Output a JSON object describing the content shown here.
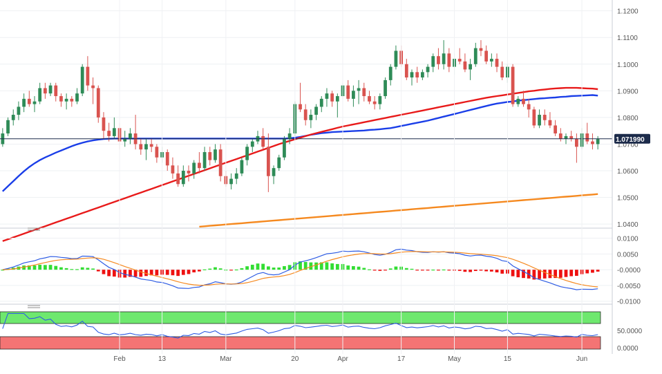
{
  "chart_data": [
    {
      "type": "candlestick",
      "panel": "price",
      "x": [
        "Jan 02",
        "Jan 03",
        "Jan 04",
        "Jan 05",
        "Jan 06",
        "Jan 09",
        "Jan 10",
        "Jan 11",
        "Jan 12",
        "Jan 13",
        "Jan 16",
        "Jan 17",
        "Jan 18",
        "Jan 19",
        "Jan 20",
        "Jan 23",
        "Jan 24",
        "Jan 25",
        "Jan 26",
        "Jan 27",
        "Jan 30",
        "Jan 31",
        "Feb 01",
        "Feb 02",
        "Feb 03",
        "Feb 06",
        "Feb 07",
        "Feb 08",
        "Feb 09",
        "Feb 10",
        "Feb 13",
        "Feb 14",
        "Feb 15",
        "Feb 16",
        "Feb 17",
        "Feb 20",
        "Feb 21",
        "Feb 22",
        "Feb 23",
        "Feb 24",
        "Feb 27",
        "Feb 28",
        "Mar 01",
        "Mar 02",
        "Mar 03",
        "Mar 06",
        "Mar 07",
        "Mar 08",
        "Mar 09",
        "Mar 10",
        "Mar 13",
        "Mar 14",
        "Mar 15",
        "Mar 16",
        "Mar 17",
        "Mar 20",
        "Mar 21",
        "Mar 22",
        "Mar 23",
        "Mar 24",
        "Mar 27",
        "Mar 28",
        "Mar 29",
        "Mar 30",
        "Mar 31",
        "Apr 03",
        "Apr 04",
        "Apr 05",
        "Apr 06",
        "Apr 07",
        "Apr 10",
        "Apr 11",
        "Apr 12",
        "Apr 13",
        "Apr 14",
        "Apr 17",
        "Apr 18",
        "Apr 19",
        "Apr 20",
        "Apr 21",
        "Apr 24",
        "Apr 25",
        "Apr 26",
        "Apr 27",
        "Apr 28",
        "May 01",
        "May 02",
        "May 03",
        "May 04",
        "May 05",
        "May 08",
        "May 09",
        "May 10",
        "May 11",
        "May 12",
        "May 15",
        "May 16",
        "May 17",
        "May 18",
        "May 19",
        "May 22",
        "May 23",
        "May 24",
        "May 25",
        "May 26",
        "May 29",
        "May 30",
        "May 31",
        "Jun 01",
        "Jun 02",
        "Jun 05",
        "Jun 06",
        "Jun 07"
      ],
      "ohlc": [
        [
          1.07,
          1.076,
          1.069,
          1.074
        ],
        [
          1.074,
          1.08,
          1.073,
          1.079
        ],
        [
          1.079,
          1.083,
          1.077,
          1.081
        ],
        [
          1.081,
          1.086,
          1.079,
          1.084
        ],
        [
          1.084,
          1.089,
          1.082,
          1.087
        ],
        [
          1.087,
          1.09,
          1.084,
          1.085
        ],
        [
          1.085,
          1.088,
          1.082,
          1.086
        ],
        [
          1.086,
          1.093,
          1.085,
          1.091
        ],
        [
          1.091,
          1.093,
          1.087,
          1.089
        ],
        [
          1.089,
          1.093,
          1.088,
          1.092
        ],
        [
          1.092,
          1.093,
          1.086,
          1.088
        ],
        [
          1.088,
          1.089,
          1.084,
          1.086
        ],
        [
          1.086,
          1.089,
          1.083,
          1.087
        ],
        [
          1.087,
          1.088,
          1.084,
          1.086
        ],
        [
          1.086,
          1.091,
          1.085,
          1.089
        ],
        [
          1.089,
          1.1,
          1.088,
          1.099
        ],
        [
          1.099,
          1.103,
          1.09,
          1.092
        ],
        [
          1.092,
          1.095,
          1.085,
          1.091
        ],
        [
          1.091,
          1.092,
          1.078,
          1.08
        ],
        [
          1.08,
          1.082,
          1.072,
          1.075
        ],
        [
          1.075,
          1.078,
          1.071,
          1.073
        ],
        [
          1.073,
          1.08,
          1.072,
          1.076
        ],
        [
          1.076,
          1.078,
          1.068,
          1.071
        ],
        [
          1.071,
          1.075,
          1.069,
          1.072
        ],
        [
          1.072,
          1.076,
          1.07,
          1.074
        ],
        [
          1.074,
          1.081,
          1.068,
          1.07
        ],
        [
          1.07,
          1.072,
          1.066,
          1.068
        ],
        [
          1.068,
          1.072,
          1.064,
          1.07
        ],
        [
          1.07,
          1.072,
          1.067,
          1.069
        ],
        [
          1.069,
          1.07,
          1.063,
          1.065
        ],
        [
          1.065,
          1.069,
          1.063,
          1.067
        ],
        [
          1.067,
          1.068,
          1.06,
          1.062
        ],
        [
          1.062,
          1.065,
          1.057,
          1.059
        ],
        [
          1.059,
          1.062,
          1.054,
          1.055
        ],
        [
          1.055,
          1.062,
          1.054,
          1.06
        ],
        [
          1.06,
          1.062,
          1.056,
          1.059
        ],
        [
          1.059,
          1.064,
          1.057,
          1.063
        ],
        [
          1.063,
          1.067,
          1.059,
          1.061
        ],
        [
          1.061,
          1.069,
          1.06,
          1.067
        ],
        [
          1.067,
          1.069,
          1.062,
          1.064
        ],
        [
          1.064,
          1.07,
          1.063,
          1.068
        ],
        [
          1.068,
          1.07,
          1.056,
          1.058
        ],
        [
          1.058,
          1.06,
          1.054,
          1.055
        ],
        [
          1.055,
          1.059,
          1.053,
          1.057
        ],
        [
          1.057,
          1.061,
          1.055,
          1.059
        ],
        [
          1.059,
          1.065,
          1.058,
          1.064
        ],
        [
          1.064,
          1.07,
          1.062,
          1.069
        ],
        [
          1.069,
          1.072,
          1.067,
          1.071
        ],
        [
          1.071,
          1.075,
          1.07,
          1.073
        ],
        [
          1.073,
          1.076,
          1.068,
          1.069
        ],
        [
          1.069,
          1.074,
          1.052,
          1.058
        ],
        [
          1.058,
          1.062,
          1.055,
          1.061
        ],
        [
          1.061,
          1.066,
          1.06,
          1.065
        ],
        [
          1.065,
          1.073,
          1.064,
          1.072
        ],
        [
          1.072,
          1.076,
          1.07,
          1.074
        ],
        [
          1.074,
          1.086,
          1.073,
          1.085
        ],
        [
          1.085,
          1.093,
          1.082,
          1.083
        ],
        [
          1.083,
          1.085,
          1.077,
          1.079
        ],
        [
          1.079,
          1.083,
          1.076,
          1.081
        ],
        [
          1.081,
          1.085,
          1.079,
          1.084
        ],
        [
          1.084,
          1.088,
          1.082,
          1.087
        ],
        [
          1.087,
          1.091,
          1.084,
          1.089
        ],
        [
          1.089,
          1.09,
          1.084,
          1.086
        ],
        [
          1.086,
          1.089,
          1.08,
          1.088
        ],
        [
          1.088,
          1.093,
          1.087,
          1.092
        ],
        [
          1.092,
          1.094,
          1.086,
          1.087
        ],
        [
          1.087,
          1.092,
          1.084,
          1.09
        ],
        [
          1.09,
          1.094,
          1.085,
          1.091
        ],
        [
          1.091,
          1.093,
          1.086,
          1.088
        ],
        [
          1.088,
          1.09,
          1.085,
          1.086
        ],
        [
          1.086,
          1.088,
          1.083,
          1.085
        ],
        [
          1.085,
          1.089,
          1.083,
          1.088
        ],
        [
          1.088,
          1.095,
          1.087,
          1.094
        ],
        [
          1.094,
          1.1,
          1.092,
          1.099
        ],
        [
          1.099,
          1.107,
          1.098,
          1.105
        ],
        [
          1.105,
          1.107,
          1.099,
          1.1
        ],
        [
          1.1,
          1.102,
          1.094,
          1.095
        ],
        [
          1.095,
          1.098,
          1.092,
          1.097
        ],
        [
          1.097,
          1.099,
          1.093,
          1.095
        ],
        [
          1.095,
          1.098,
          1.094,
          1.097
        ],
        [
          1.097,
          1.1,
          1.095,
          1.099
        ],
        [
          1.099,
          1.104,
          1.097,
          1.103
        ],
        [
          1.103,
          1.106,
          1.098,
          1.1
        ],
        [
          1.1,
          1.109,
          1.098,
          1.104
        ],
        [
          1.104,
          1.106,
          1.097,
          1.099
        ],
        [
          1.099,
          1.104,
          1.096,
          1.102
        ],
        [
          1.102,
          1.106,
          1.1,
          1.101
        ],
        [
          1.101,
          1.104,
          1.097,
          1.098
        ],
        [
          1.098,
          1.102,
          1.094,
          1.1
        ],
        [
          1.1,
          1.108,
          1.099,
          1.106
        ],
        [
          1.106,
          1.109,
          1.103,
          1.105
        ],
        [
          1.105,
          1.107,
          1.1,
          1.101
        ],
        [
          1.101,
          1.104,
          1.099,
          1.102
        ],
        [
          1.102,
          1.104,
          1.097,
          1.099
        ],
        [
          1.099,
          1.101,
          1.094,
          1.095
        ],
        [
          1.095,
          1.1,
          1.093,
          1.099
        ],
        [
          1.099,
          1.1,
          1.084,
          1.085
        ],
        [
          1.085,
          1.088,
          1.084,
          1.087
        ],
        [
          1.087,
          1.09,
          1.084,
          1.085
        ],
        [
          1.085,
          1.087,
          1.08,
          1.083
        ],
        [
          1.083,
          1.084,
          1.076,
          1.077
        ],
        [
          1.077,
          1.083,
          1.076,
          1.081
        ],
        [
          1.081,
          1.083,
          1.077,
          1.079
        ],
        [
          1.079,
          1.082,
          1.076,
          1.077
        ],
        [
          1.077,
          1.079,
          1.073,
          1.074
        ],
        [
          1.074,
          1.076,
          1.071,
          1.072
        ],
        [
          1.072,
          1.074,
          1.07,
          1.073
        ],
        [
          1.073,
          1.075,
          1.071,
          1.072
        ],
        [
          1.072,
          1.074,
          1.063,
          1.069
        ],
        [
          1.069,
          1.076,
          1.068,
          1.074
        ],
        [
          1.074,
          1.078,
          1.07,
          1.071
        ],
        [
          1.071,
          1.074,
          1.068,
          1.07
        ],
        [
          1.07,
          1.073,
          1.068,
          1.0719
        ]
      ],
      "moving_averages": [
        {
          "color": "#1a3ee8",
          "values": [
            1.0523,
            1.0542,
            1.0561,
            1.058,
            1.0598,
            1.0614,
            1.0628,
            1.064,
            1.065,
            1.0659,
            1.0668,
            1.0676,
            1.0684,
            1.0692,
            1.0699,
            1.0705,
            1.071,
            1.0714,
            1.0717,
            1.0719,
            1.072,
            1.0721,
            1.0721,
            1.0721,
            1.0721,
            1.0721,
            1.0721,
            1.0721,
            1.0721,
            1.0721,
            1.0721,
            1.0721,
            1.0721,
            1.0721,
            1.0721,
            1.0721,
            1.0721,
            1.0721,
            1.0721,
            1.0721,
            1.0721,
            1.0721,
            1.0721,
            1.0721,
            1.0721,
            1.0721,
            1.0721,
            1.0721,
            1.0721,
            1.0721,
            1.0721,
            1.0721,
            1.0721,
            1.0721,
            1.0722,
            1.0724,
            1.0727,
            1.0731,
            1.0735,
            1.0738,
            1.0741,
            1.0743,
            1.0745,
            1.0746,
            1.0747,
            1.0748,
            1.0749,
            1.075,
            1.0751,
            1.0753,
            1.0754,
            1.0756,
            1.0758,
            1.076,
            1.0764,
            1.0768,
            1.0772,
            1.0776,
            1.078,
            1.0784,
            1.0788,
            1.0793,
            1.0798,
            1.0803,
            1.0808,
            1.0813,
            1.0818,
            1.0823,
            1.0828,
            1.0833,
            1.0838,
            1.0843,
            1.0848,
            1.0852,
            1.0855,
            1.0858,
            1.086,
            1.0863,
            1.0865,
            1.0867,
            1.0869,
            1.0871,
            1.0872,
            1.0874,
            1.0875,
            1.0877,
            1.0878,
            1.088,
            1.0881,
            1.0882,
            1.0883,
            1.0884,
            1.0882
          ]
        },
        {
          "color": "#e81a1a",
          "values": [
            1.0336,
            1.0343,
            1.035,
            1.0357,
            1.0364,
            1.0371,
            1.0378,
            1.0385,
            1.0392,
            1.0399,
            1.0406,
            1.0413,
            1.042,
            1.0427,
            1.0434,
            1.0441,
            1.0448,
            1.0455,
            1.0462,
            1.0469,
            1.0476,
            1.0483,
            1.049,
            1.0497,
            1.0504,
            1.0511,
            1.0518,
            1.0525,
            1.0532,
            1.0539,
            1.0546,
            1.0553,
            1.056,
            1.0567,
            1.0574,
            1.0581,
            1.0588,
            1.0595,
            1.0602,
            1.0609,
            1.0616,
            1.0623,
            1.063,
            1.0637,
            1.0644,
            1.0651,
            1.0658,
            1.0665,
            1.0672,
            1.0679,
            1.0686,
            1.0693,
            1.07,
            1.0706,
            1.0712,
            1.0718,
            1.0724,
            1.073,
            1.0736,
            1.0741,
            1.0746,
            1.0751,
            1.0756,
            1.0761,
            1.0766,
            1.077,
            1.0774,
            1.0778,
            1.0782,
            1.0786,
            1.079,
            1.0794,
            1.0798,
            1.0802,
            1.0806,
            1.081,
            1.0814,
            1.0818,
            1.0822,
            1.0826,
            1.083,
            1.0834,
            1.0838,
            1.0842,
            1.0846,
            1.085,
            1.0854,
            1.0858,
            1.0862,
            1.0866,
            1.087,
            1.0874,
            1.0877,
            1.088,
            1.0883,
            1.0886,
            1.0889,
            1.0892,
            1.0895,
            1.0898,
            1.09,
            1.0903,
            1.0905,
            1.0907,
            1.0909,
            1.091,
            1.0911,
            1.0911,
            1.0911,
            1.091,
            1.0909,
            1.0908,
            1.0906
          ]
        },
        {
          "color": "#f5891f",
          "values": [
            null,
            null,
            null,
            null,
            null,
            null,
            null,
            null,
            null,
            null,
            null,
            null,
            null,
            null,
            null,
            null,
            null,
            null,
            null,
            null,
            null,
            null,
            null,
            null,
            null,
            null,
            null,
            null,
            null,
            null,
            null,
            null,
            null,
            null,
            null,
            null,
            null,
            null,
            null,
            null,
            null,
            null,
            null,
            null,
            null,
            null,
            null,
            null,
            null,
            null,
            null,
            null,
            null,
            null,
            null,
            null,
            null,
            null,
            null,
            null,
            null,
            null,
            null,
            null,
            null,
            null,
            null,
            null,
            null,
            null,
            null,
            null,
            null,
            null,
            null,
            null,
            null,
            null,
            null,
            null,
            null,
            null,
            null,
            null,
            null,
            null,
            null,
            null,
            null,
            null,
            null,
            null,
            null,
            null,
            null,
            null,
            null,
            null,
            null,
            null,
            null,
            null,
            null,
            null,
            null,
            null,
            null,
            null,
            null,
            null,
            null,
            null,
            null
          ]
        }
      ],
      "y_ticks": [
        "1.1200",
        "1.1100",
        "1.1000",
        "1.0900",
        "1.0800",
        "1.0700",
        "1.0600",
        "1.0500",
        "1.0400"
      ],
      "ylim": [
        1.039,
        1.1225
      ],
      "last_price_label": "1.071990",
      "last_price": 1.07199
    },
    {
      "type": "macd",
      "panel": "macd",
      "y_ticks": [
        "0.0100",
        "0.0050",
        "-0.0000",
        "-0.0050",
        "-0.0100"
      ],
      "ylim": [
        -0.0105,
        0.011
      ]
    },
    {
      "type": "line",
      "panel": "rsi",
      "y_ticks": [
        "50.0000",
        "0.0000"
      ]
    }
  ],
  "x_axis_labels": [
    "Feb",
    "13",
    "Mar",
    "20",
    "Apr",
    "17",
    "May",
    "15",
    "Jun"
  ]
}
